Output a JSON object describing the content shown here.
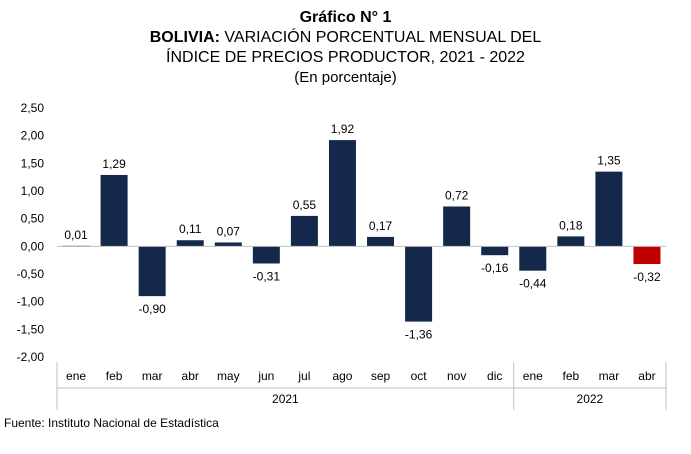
{
  "title": {
    "main": "Gráfico N° 1",
    "line1_bold": "BOLIVIA:",
    "line1_rest": "VARIACIÓN PORCENTUAL MENSUAL DEL",
    "line2": "ÍNDICE DE PRECIOS PRODUCTOR, 2021 - 2022",
    "subtitle": "(En porcentaje)"
  },
  "source": "Fuente: Instituto Nacional de Estadística",
  "colors": {
    "bar": "#13284a",
    "highlight": "#c00000",
    "axis": "#bfbfbf"
  },
  "chart_data": {
    "type": "bar",
    "categories": [
      "ene",
      "feb",
      "mar",
      "abr",
      "may",
      "jun",
      "jul",
      "ago",
      "sep",
      "oct",
      "nov",
      "dic",
      "ene",
      "feb",
      "mar",
      "abr"
    ],
    "values": [
      0.01,
      1.29,
      -0.9,
      0.11,
      0.07,
      -0.31,
      0.55,
      1.92,
      0.17,
      -1.36,
      0.72,
      -0.16,
      -0.44,
      0.18,
      1.35,
      -0.32
    ],
    "labels": [
      "0,01",
      "1,29",
      "-0,90",
      "0,11",
      "0,07",
      "-0,31",
      "0,55",
      "1,92",
      "0,17",
      "-1,36",
      "0,72",
      "-0,16",
      "-0,44",
      "0,18",
      "1,35",
      "-0,32"
    ],
    "highlight_index": 15,
    "groups": [
      {
        "label": "2021",
        "count": 12
      },
      {
        "label": "2022",
        "count": 4
      }
    ],
    "ylim": [
      -2.0,
      2.5
    ],
    "yticks": [
      2.5,
      2.0,
      1.5,
      1.0,
      0.5,
      0.0,
      -0.5,
      -1.0,
      -1.5,
      -2.0
    ],
    "ytick_labels": [
      "2,50",
      "2,00",
      "1,50",
      "1,00",
      "0,50",
      "0,00",
      "-0,50",
      "-1,00",
      "-1,50",
      "-2,00"
    ],
    "xlabel": "",
    "ylabel": "",
    "grid": false,
    "legend": "none"
  }
}
